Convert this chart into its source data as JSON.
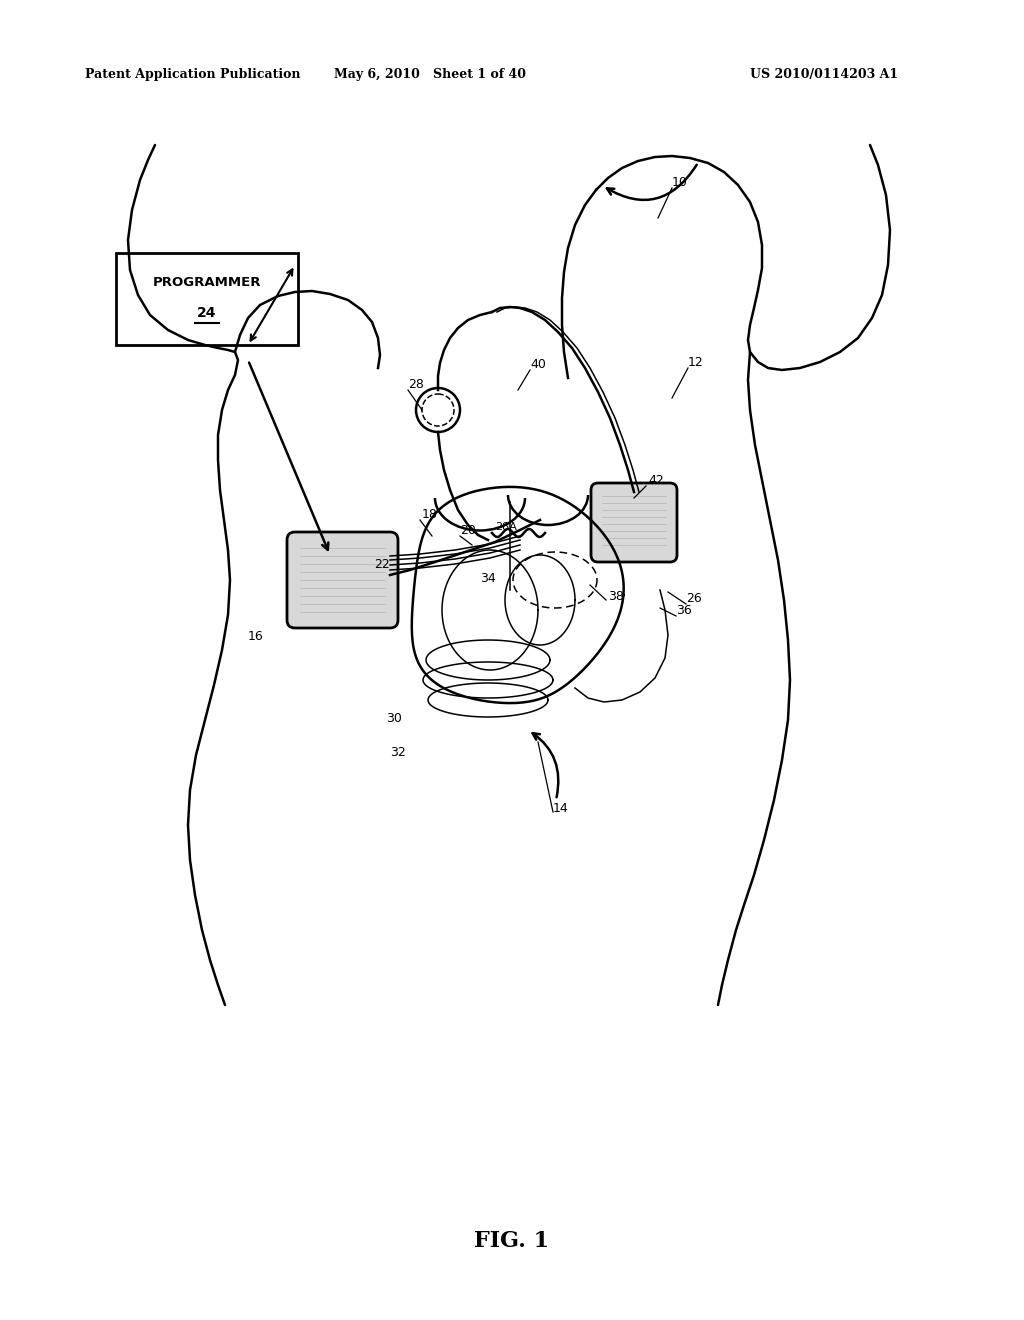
{
  "background_color": "#ffffff",
  "header_left": "Patent Application Publication",
  "header_center": "May 6, 2010   Sheet 1 of 40",
  "header_right": "US 2010/0114203 A1",
  "figure_label": "FIG. 1"
}
